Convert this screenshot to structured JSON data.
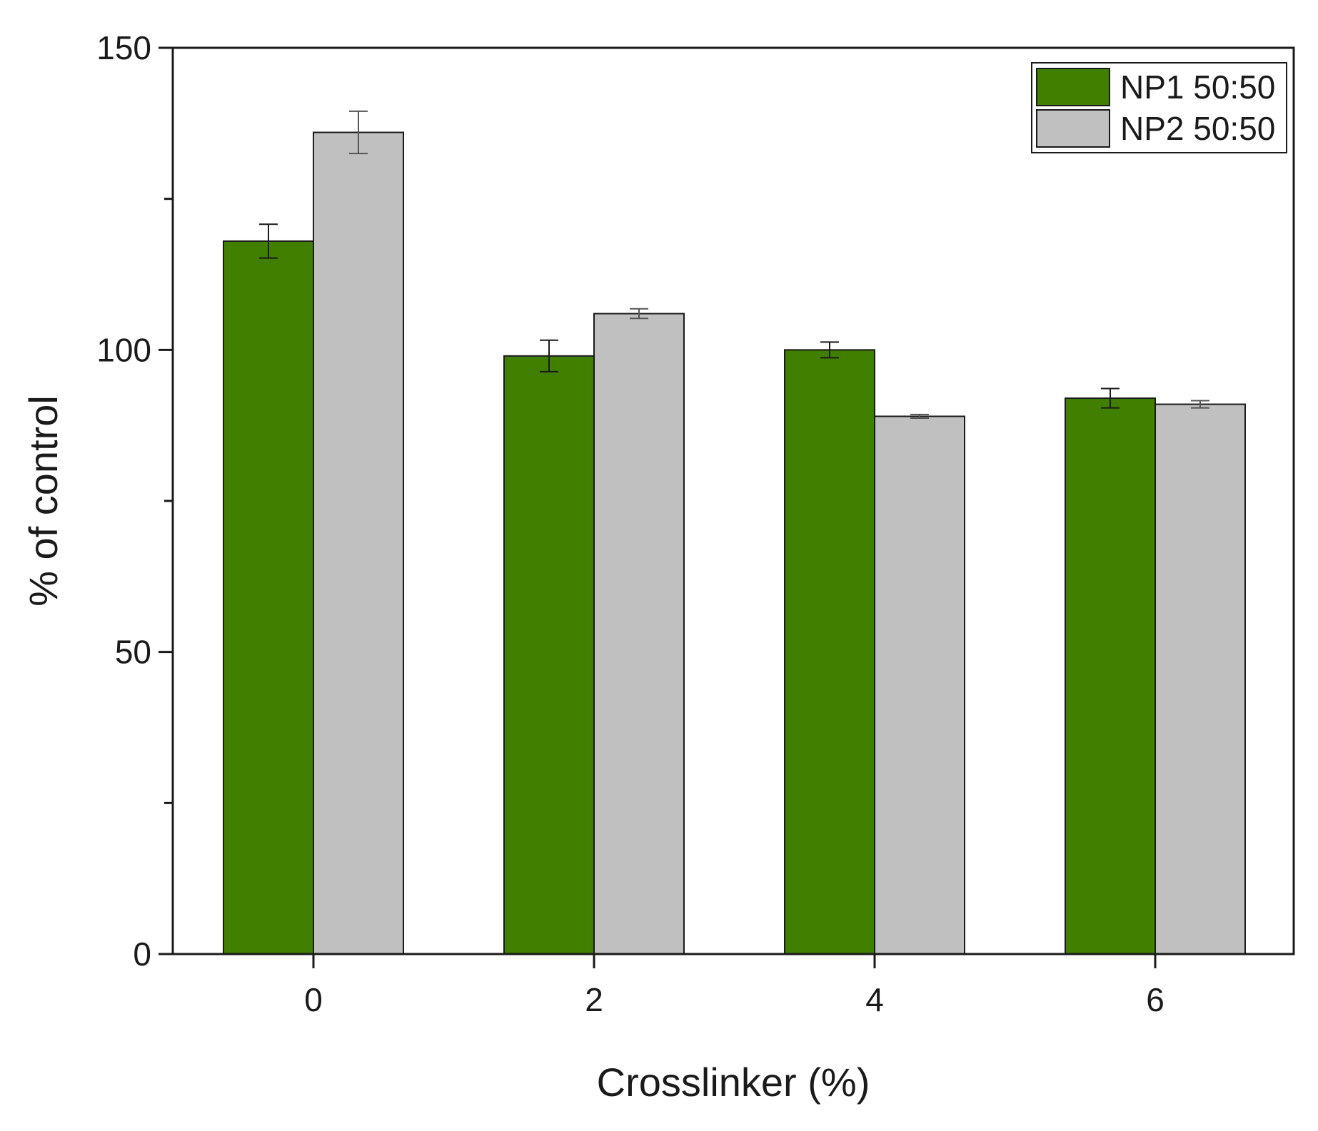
{
  "chart_data": {
    "type": "bar",
    "title": "",
    "xlabel": "Crosslinker (%)",
    "ylabel": "% of control",
    "categories": [
      "0",
      "2",
      "4",
      "6"
    ],
    "series": [
      {
        "name": "NP1 50:50",
        "color": "#407F00",
        "values": [
          118,
          99,
          100,
          92
        ],
        "errors": [
          2.8,
          2.6,
          1.3,
          1.6
        ]
      },
      {
        "name": "NP2 50:50",
        "color": "#C0C0C0",
        "values": [
          136,
          106,
          89,
          91
        ],
        "errors": [
          3.5,
          0.8,
          0.3,
          0.6
        ]
      }
    ],
    "ylim": [
      0,
      150
    ],
    "yticks": [
      "0",
      "50",
      "100",
      "150"
    ],
    "y_minor_step": 25,
    "grid": false,
    "legend_position": "top-right"
  }
}
